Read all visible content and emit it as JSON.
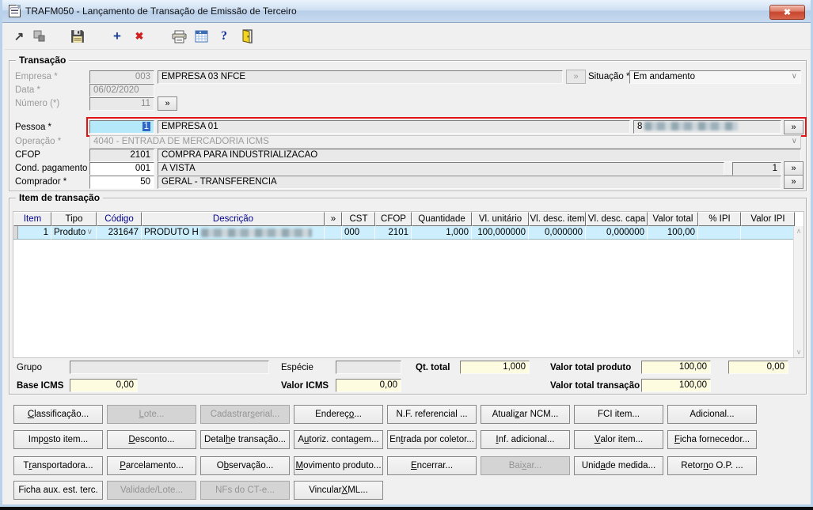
{
  "window": {
    "title": "TRAFM050 - Lançamento de Transação de Emissão de Terceiro",
    "close_glyph": "✖"
  },
  "glyphs": {
    "more": "»",
    "dropdown": "∨",
    "scroll_up": "∧",
    "scroll_down": "∨",
    "add": "+",
    "delete": "✖",
    "help": "?",
    "jump": "↗"
  },
  "transacao": {
    "legend": "Transação",
    "empresa_label": "Empresa *",
    "empresa_code": "003",
    "empresa_name": "EMPRESA 03 NFCE",
    "situacao_label": "Situação *",
    "situacao_value": "Em andamento",
    "data_label": "Data *",
    "data_value": "06/02/2020",
    "numero_label": "Número (*)",
    "numero_value": "11",
    "pessoa_label": "Pessoa *",
    "pessoa_code": "1",
    "pessoa_name": "EMPRESA 01",
    "pessoa_doc_prefix": "8",
    "operacao_label": "Operação *",
    "operacao_value": "4040 - ENTRADA DE MERCADORIA ICMS",
    "cfop_label": "CFOP",
    "cfop_code": "2101",
    "cfop_name": "COMPRA PARA INDUSTRIALIZACAO",
    "cond_label": "Cond. pagamento *",
    "cond_code": "001",
    "cond_name": "A VISTA",
    "cond_parcelas": "1",
    "comprador_label": "Comprador *",
    "comprador_code": "50",
    "comprador_name": "GERAL - TRANSFERENCIA"
  },
  "itens": {
    "legend": "Item de transação",
    "columns": [
      "Item",
      "Tipo",
      "Código",
      "Descrição",
      "»",
      "CST",
      "CFOP",
      "Quantidade",
      "Vl. unitário",
      "Vl. desc. item",
      "Vl. desc. capa",
      "Valor total",
      "% IPI",
      "Valor IPI"
    ],
    "row": {
      "item": "1",
      "tipo": "Produto",
      "codigo": "231647",
      "descricao_prefix": "PRODUTO H",
      "cst": "000",
      "cfop": "2101",
      "quantidade": "1,000",
      "vl_unitario": "100,000000",
      "vl_desc_item": "0,000000",
      "vl_desc_capa": "0,000000",
      "valor_total": "100,00",
      "pct_ipi": "",
      "valor_ipi": ""
    }
  },
  "totais": {
    "grupo_label": "Grupo",
    "grupo_value": "",
    "especie_label": "Espécie",
    "especie_value": "",
    "qt_total_label": "Qt. total",
    "qt_total_value": "1,000",
    "valor_total_produto_label": "Valor total produto",
    "valor_total_produto_value": "100,00",
    "valor_ipi_total_value": "0,00",
    "valor_total_transacao_label": "Valor total transação",
    "valor_total_transacao_value": "100,00",
    "base_icms_label": "Base ICMS",
    "base_icms_value": "0,00",
    "valor_icms_label": "Valor ICMS",
    "valor_icms_value": "0,00"
  },
  "buttons": {
    "rows": [
      [
        {
          "label": "&Classificação...",
          "disabled": false
        },
        {
          "label": "&Lote...",
          "disabled": true
        },
        {
          "label": "Cadastrar &serial...",
          "disabled": true
        },
        {
          "label": "Endereç&o...",
          "disabled": false
        },
        {
          "label": "N.F. referencial ...",
          "disabled": false
        },
        {
          "label": "Atuali&zar NCM...",
          "disabled": false
        },
        {
          "label": "FCI item...",
          "disabled": false
        },
        {
          "label": "Adicional...",
          "disabled": false
        }
      ],
      [
        {
          "label": "Imp&osto item...",
          "disabled": false
        },
        {
          "label": "&Desconto...",
          "disabled": false
        },
        {
          "label": "Detal&he transação...",
          "disabled": false
        },
        {
          "label": "A&utoriz. contagem...",
          "disabled": false
        },
        {
          "label": "En&trada por coletor...",
          "disabled": false
        },
        {
          "label": "&Inf. adicional...",
          "disabled": false
        },
        {
          "label": "&Valor item...",
          "disabled": false
        },
        {
          "label": "&Ficha fornecedor...",
          "disabled": false
        }
      ],
      [
        {
          "label": "T&ransportadora...",
          "disabled": false
        },
        {
          "label": "&Parcelamento...",
          "disabled": false
        },
        {
          "label": "O&bservação...",
          "disabled": false
        },
        {
          "label": "&Movimento produto...",
          "disabled": false
        },
        {
          "label": "&Encerrar...",
          "disabled": false
        },
        {
          "label": "Bai&xar...",
          "disabled": true
        },
        {
          "label": "Unid&ade medida...",
          "disabled": false
        },
        {
          "label": "Retor&no O.P. ...",
          "disabled": false
        }
      ],
      [
        {
          "label": "Ficha aux. est. terc.",
          "disabled": false
        },
        {
          "label": "Validade/Lote...",
          "disabled": true
        },
        {
          "label": "NFs do CT-e...",
          "disabled": true
        },
        {
          "label": "Vincular &XML...",
          "disabled": false
        }
      ]
    ]
  }
}
